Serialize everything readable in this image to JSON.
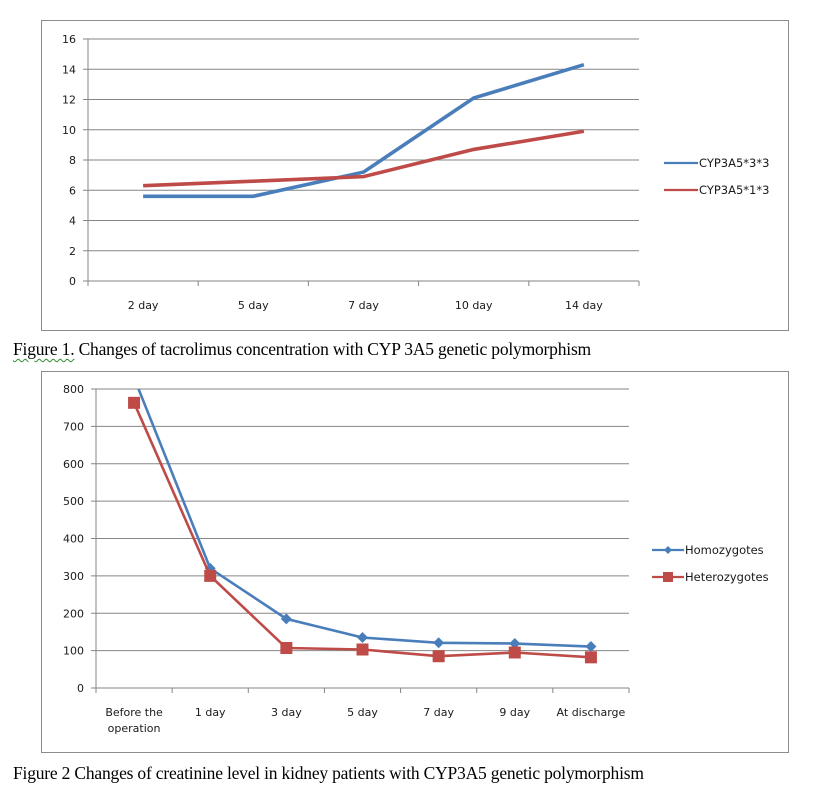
{
  "figures": [
    {
      "caption_lead": "Figure 1.",
      "caption_rest": " Changes of tacrolimus concentration with CYP 3A5 genetic polymorphism"
    },
    {
      "caption_lead": "Figure 2",
      "caption_rest": " Changes of creatinine level in kidney patients with CYP3A5 genetic polymorphism"
    }
  ],
  "chart_data": [
    {
      "type": "line",
      "title": "",
      "xlabel": "",
      "ylabel": "",
      "categories": [
        "2 day",
        "5 day",
        "7 day",
        "10 day",
        "14 day"
      ],
      "ylim": [
        0,
        16
      ],
      "yticks": [
        0,
        2,
        4,
        6,
        8,
        10,
        12,
        14,
        16
      ],
      "grid": true,
      "legend_position": "right",
      "markers": false,
      "series": [
        {
          "name": "CYP3A5*3*3",
          "color": "#4a7ebb",
          "values": [
            5.6,
            5.6,
            7.2,
            12.1,
            14.3
          ]
        },
        {
          "name": "CYP3A5*1*3",
          "color": "#be4b48",
          "values": [
            6.3,
            6.6,
            6.9,
            8.7,
            9.9
          ]
        }
      ]
    },
    {
      "type": "line",
      "title": "",
      "xlabel": "",
      "ylabel": "",
      "categories": [
        "Before the operation",
        "1 day",
        "3 day",
        "5 day",
        "7 day",
        "9 day",
        "At discharge"
      ],
      "ylim": [
        0,
        800
      ],
      "yticks": [
        0,
        100,
        200,
        300,
        400,
        500,
        600,
        700,
        800
      ],
      "grid": true,
      "legend_position": "right",
      "markers": true,
      "series": [
        {
          "name": "Homozygotes",
          "color": "#4a7ebb",
          "marker": "diamond",
          "values": [
            830,
            320,
            185,
            135,
            121,
            119,
            111
          ]
        },
        {
          "name": "Heterozygotes",
          "color": "#be4b48",
          "marker": "square",
          "values": [
            763,
            300,
            107,
            103,
            85,
            95,
            82
          ]
        }
      ]
    }
  ]
}
